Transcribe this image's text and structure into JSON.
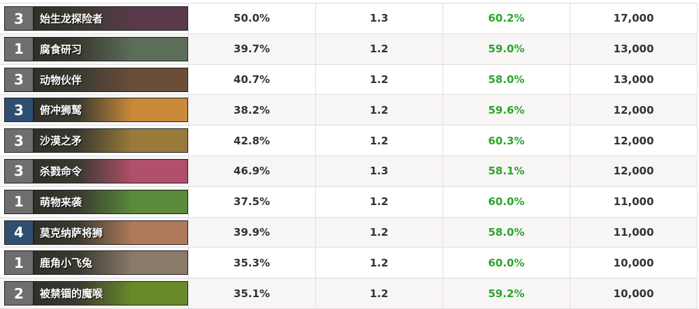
{
  "table": {
    "rows": [
      {
        "cost": "3",
        "name": "始生龙探险者",
        "cost_color": "#6e6e6e",
        "art": "#5a3a4a",
        "cells": [
          "50.0%",
          "1.3",
          "60.2%",
          "17,000"
        ]
      },
      {
        "cost": "1",
        "name": "腐食研习",
        "cost_color": "#6e6e6e",
        "art": "#5c6e5a",
        "cells": [
          "39.7%",
          "1.2",
          "59.0%",
          "13,000"
        ]
      },
      {
        "cost": "3",
        "name": "动物伙伴",
        "cost_color": "#6e6e6e",
        "art": "#6a4e3a",
        "cells": [
          "40.7%",
          "1.2",
          "58.0%",
          "13,000"
        ]
      },
      {
        "cost": "3",
        "name": "俯冲狮鹫",
        "cost_color": "#2f4f72",
        "art": "#c98a3a",
        "cells": [
          "38.2%",
          "1.2",
          "59.6%",
          "12,000"
        ]
      },
      {
        "cost": "3",
        "name": "沙漠之矛",
        "cost_color": "#6e6e6e",
        "art": "#9a7a3a",
        "cells": [
          "42.8%",
          "1.2",
          "60.3%",
          "12,000"
        ]
      },
      {
        "cost": "3",
        "name": "杀戮命令",
        "cost_color": "#6e6e6e",
        "art": "#b0506a",
        "cells": [
          "46.9%",
          "1.3",
          "58.1%",
          "12,000"
        ]
      },
      {
        "cost": "1",
        "name": "萌物来袭",
        "cost_color": "#6e6e6e",
        "art": "#5a8a3a",
        "cells": [
          "37.5%",
          "1.2",
          "60.0%",
          "11,000"
        ]
      },
      {
        "cost": "4",
        "name": "莫克纳萨将狮",
        "cost_color": "#2f4f72",
        "art": "#b07a5a",
        "cells": [
          "39.9%",
          "1.2",
          "58.0%",
          "11,000"
        ]
      },
      {
        "cost": "1",
        "name": "鹿角小飞兔",
        "cost_color": "#6e6e6e",
        "art": "#8a7a6a",
        "cells": [
          "35.3%",
          "1.2",
          "60.0%",
          "10,000"
        ]
      },
      {
        "cost": "2",
        "name": "被禁锢的魔喉",
        "cost_color": "#6e6e6e",
        "art": "#6a8a2a",
        "cells": [
          "35.1%",
          "1.2",
          "59.2%",
          "10,000"
        ]
      }
    ]
  }
}
